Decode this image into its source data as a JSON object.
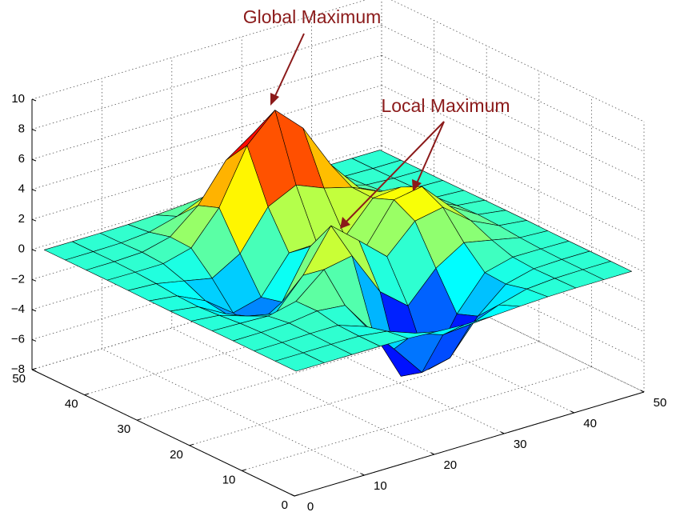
{
  "chart_data": {
    "type": "surface",
    "colormap": "jet",
    "edge_color": "#000000",
    "grid": true,
    "x": [
      1,
      5,
      9,
      13,
      17,
      21,
      25,
      29,
      33,
      37,
      41,
      45,
      49
    ],
    "y": [
      1,
      5,
      9,
      13,
      17,
      21,
      25,
      29,
      33,
      37,
      41,
      45,
      49
    ],
    "z": [
      [
        0,
        0,
        0,
        0,
        -0.03,
        -0.14,
        -0.24,
        -0.22,
        -0.11,
        -0.03,
        0,
        0,
        0
      ],
      [
        0,
        0,
        0.01,
        0,
        -0.23,
        -0.91,
        -1.57,
        -1.41,
        -0.69,
        -0.18,
        -0.03,
        0,
        0
      ],
      [
        0,
        0.01,
        0.05,
        0.05,
        -0.59,
        -2.63,
        -4.75,
        -4.34,
        -2.11,
        -0.53,
        -0.06,
        0,
        0
      ],
      [
        0,
        0.01,
        0.08,
        0.33,
        0.15,
        -2.19,
        -5.68,
        -5.76,
        -2.64,
        -0.44,
        0.04,
        0.03,
        0
      ],
      [
        -0.01,
        -0.06,
        -0.13,
        0.3,
        1.86,
        2.22,
        -0.72,
        -2.22,
        -0.27,
        0.88,
        0.5,
        0.11,
        0.01
      ],
      [
        -0.03,
        -0.2,
        -0.8,
        -1.21,
        0.8,
        3.55,
        2,
        0.39,
        2.2,
        2.56,
        1.12,
        0.24,
        0.03
      ],
      [
        -0.04,
        -0.3,
        -1.33,
        -2.77,
        -1.65,
        1.48,
        0.98,
        0.38,
        2.94,
        3.27,
        1.41,
        0.3,
        0.03
      ],
      [
        -0.03,
        -0.25,
        -1.12,
        -2.49,
        -2,
        0.39,
        0.46,
        0.37,
        2.38,
        2.56,
        1.09,
        0.23,
        0.03
      ],
      [
        -0.01,
        -0.11,
        -0.48,
        -0.86,
        0.23,
        2.79,
        3.69,
        2.93,
        2.43,
        1.58,
        0.58,
        0.11,
        0.01
      ],
      [
        0,
        -0.02,
        -0.01,
        0.48,
        2.61,
        6.2,
        8,
        6.25,
        3.25,
        1.18,
        0.29,
        0.05,
        0
      ],
      [
        0,
        0.01,
        0.08,
        0.55,
        2.09,
        4.55,
        5.85,
        4.56,
        2.2,
        0.68,
        0.13,
        0.02,
        0
      ],
      [
        0,
        0,
        0.03,
        0.19,
        0.69,
        1.47,
        1.88,
        1.47,
        0.7,
        0.2,
        0.04,
        0,
        0
      ],
      [
        0,
        0,
        0.01,
        0.03,
        0.11,
        0.23,
        0.3,
        0.23,
        0.11,
        0.03,
        0.01,
        0,
        0
      ]
    ],
    "xlim": [
      0,
      50
    ],
    "ylim": [
      0,
      50
    ],
    "zlim": [
      -8,
      10
    ],
    "xticks": [
      0,
      10,
      20,
      30,
      40,
      50
    ],
    "yticks": [
      0,
      10,
      20,
      30,
      40,
      50
    ],
    "zticks": [
      {
        "value": -8,
        "label": "−8"
      },
      {
        "value": -6,
        "label": "−6"
      },
      {
        "value": -4,
        "label": "−4"
      },
      {
        "value": -2,
        "label": "−2"
      },
      0,
      2,
      4,
      6,
      8,
      10
    ],
    "annotations": [
      "Global Maximum",
      "Local Maximum"
    ]
  }
}
